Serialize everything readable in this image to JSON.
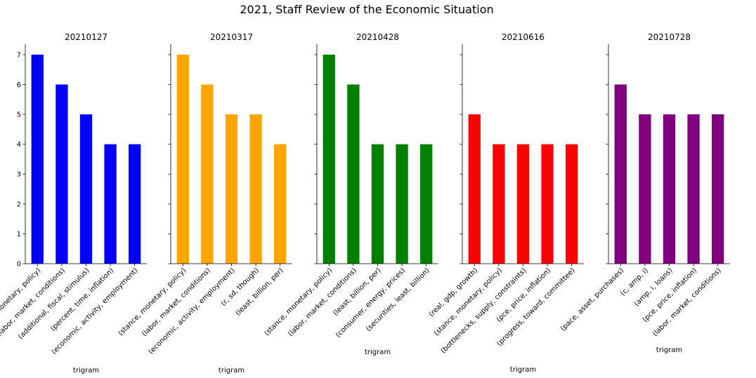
{
  "title": "2021, Staff Review of the Economic Situation",
  "chart_data": [
    {
      "type": "bar",
      "title": "20210127",
      "xlabel": "trigram",
      "ylabel": "",
      "color": "#0000ff",
      "ylim": [
        0,
        7.35
      ],
      "yticks": [
        0,
        1,
        2,
        3,
        4,
        5,
        6,
        7
      ],
      "categories": [
        "(stance, monetary, policy)",
        "(labor, market, conditions)",
        "(additional, fiscal, stimulus)",
        "(percent, time, inflation)",
        "(economic, activity, employment)"
      ],
      "values": [
        7,
        6,
        5,
        4,
        4
      ]
    },
    {
      "type": "bar",
      "title": "20210317",
      "xlabel": "trigram",
      "ylabel": "",
      "color": "#ffa500",
      "ylim": [
        0,
        7.35
      ],
      "yticks": [
        0,
        1,
        2,
        3,
        4,
        5,
        6,
        7
      ],
      "categories": [
        "(stance, monetary, policy)",
        "(labor, market, conditions)",
        "(economic, activity, employment)",
        "(r, sd, though)",
        "(least, billion, per)"
      ],
      "values": [
        7,
        6,
        5,
        5,
        4
      ]
    },
    {
      "type": "bar",
      "title": "20210428",
      "xlabel": "trigram",
      "ylabel": "",
      "color": "#008000",
      "ylim": [
        0,
        7.35
      ],
      "yticks": [
        0,
        1,
        2,
        3,
        4,
        5,
        6,
        7
      ],
      "categories": [
        "(stance, monetary, policy)",
        "(labor, market, conditions)",
        "(least, billion, per)",
        "(consumer, energy, prices)",
        "(securities, least, billion)"
      ],
      "values": [
        7,
        6,
        4,
        4,
        4
      ]
    },
    {
      "type": "bar",
      "title": "20210616",
      "xlabel": "trigram",
      "ylabel": "",
      "color": "#ff0000",
      "ylim": [
        0,
        7.35
      ],
      "yticks": [
        0,
        1,
        2,
        3,
        4,
        5,
        6,
        7
      ],
      "categories": [
        "(real, gdp, growth)",
        "(stance, monetary, policy)",
        "(bottlenecks, supply, constraints)",
        "(pce, price, inflation)",
        "(progress, toward, committee)"
      ],
      "values": [
        5,
        4,
        4,
        4,
        4
      ]
    },
    {
      "type": "bar",
      "title": "20210728",
      "xlabel": "trigram",
      "ylabel": "",
      "color": "#800080",
      "ylim": [
        0,
        7.35
      ],
      "yticks": [
        0,
        1,
        2,
        3,
        4,
        5,
        6,
        7
      ],
      "categories": [
        "(pace, asset, purchases)",
        "(c, amp, i)",
        "(amp, i, loans)",
        "(pce, price, inflation)",
        "(labor, market, conditions)"
      ],
      "values": [
        6,
        5,
        5,
        5,
        5
      ]
    }
  ]
}
